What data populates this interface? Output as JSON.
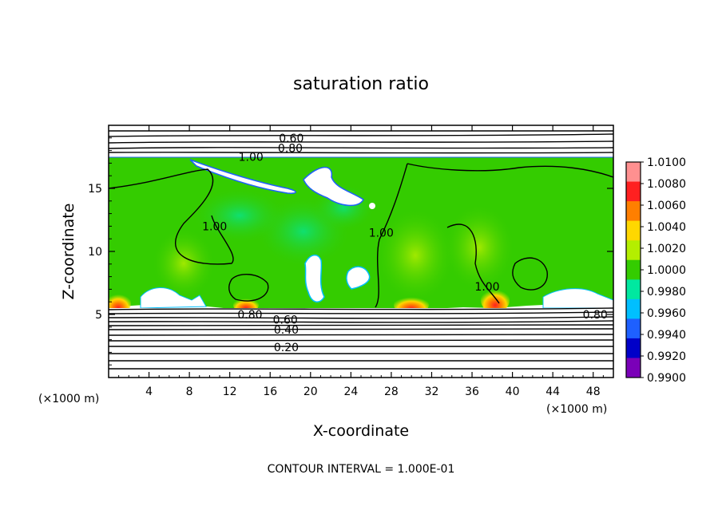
{
  "chart_data": {
    "type": "heatmap",
    "title": "saturation ratio",
    "xlabel": "X-coordinate",
    "ylabel": "Z-coordinate",
    "x_unit_left": "(×1000 m)",
    "x_unit_right": "(×1000 m)",
    "xlim": [
      0,
      50
    ],
    "ylim": [
      0,
      20
    ],
    "x_ticks": [
      4,
      8,
      12,
      16,
      20,
      24,
      28,
      32,
      36,
      40,
      44,
      48
    ],
    "y_ticks": [
      5,
      10,
      15
    ],
    "footer": "CONTOUR INTERVAL = 1.000E-01",
    "colorbar": {
      "levels": [
        "1.0100",
        "1.0080",
        "1.0060",
        "1.0040",
        "1.0020",
        "1.0000",
        "0.9980",
        "0.9960",
        "0.9940",
        "0.9920",
        "0.9900"
      ],
      "colors": [
        "#ff9090",
        "#ff2020",
        "#ff7f00",
        "#ffd700",
        "#b4ee00",
        "#34cc00",
        "#00e8a0",
        "#00bfff",
        "#1e60ff",
        "#0000c8",
        "#7a00b8"
      ]
    },
    "contour_labels": [
      {
        "text": "0.60",
        "x": 18.1,
        "z": 19.0
      },
      {
        "text": "0.80",
        "x": 18.0,
        "z": 18.2
      },
      {
        "text": "1.00",
        "x": 14.1,
        "z": 17.5
      },
      {
        "text": "1.00",
        "x": 10.5,
        "z": 12.0
      },
      {
        "text": "1.00",
        "x": 27.0,
        "z": 11.5
      },
      {
        "text": "1.00",
        "x": 37.5,
        "z": 7.2
      },
      {
        "text": "0.80",
        "x": 14.0,
        "z": 5.0
      },
      {
        "text": "0.60",
        "x": 17.5,
        "z": 4.6
      },
      {
        "text": "0.40",
        "x": 17.6,
        "z": 3.8
      },
      {
        "text": "0.20",
        "x": 17.6,
        "z": 2.4
      },
      {
        "text": "0.80",
        "x": 48.2,
        "z": 5.0
      }
    ]
  }
}
